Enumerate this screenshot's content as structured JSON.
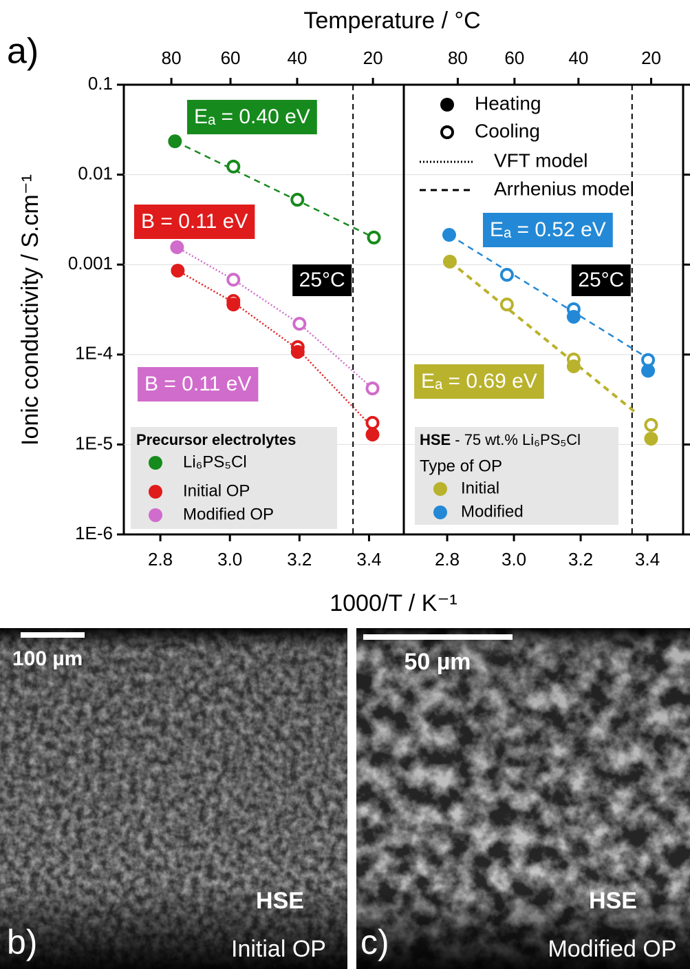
{
  "chart_data": [
    {
      "type": "scatter",
      "panel_label": "a)",
      "x2label": "Temperature / °C",
      "ylabel": "Ionic conductivity / S.cm⁻¹",
      "xlabel": "1000/T / K⁻¹",
      "xlim": [
        2.695,
        3.5
      ],
      "xticks": [
        2.8,
        {
          "value": 3.0,
          "label": "3.0"
        },
        3.2,
        3.4
      ],
      "x2ticks": [
        80,
        60,
        40,
        20
      ],
      "ylim": [
        1e-06,
        0.1
      ],
      "yscale": "log",
      "yticks": [
        0.1,
        0.01,
        0.001,
        {
          "value": 0.0001,
          "label": "1E-4"
        },
        {
          "value": 1e-05,
          "label": "1E-5"
        },
        {
          "value": 1e-06,
          "label": "1E-6"
        }
      ],
      "vline": {
        "x": 3.354,
        "label": "25°C"
      },
      "legend_title": "Precursor electrolytes",
      "series": [
        {
          "name": "Li₆PS₅Cl",
          "color": "#168a1c",
          "x": [
            2.842,
            3.01,
            3.194,
            3.414
          ],
          "heating": [
            0.0235,
            null,
            null,
            null
          ],
          "cooling": [
            null,
            0.0123,
            0.00526,
            0.002
          ],
          "fit": {
            "style": "dashed",
            "x": [
              2.842,
              3.414
            ],
            "values": [
              0.0235,
              0.002
            ]
          },
          "fit_label": "Eₐ = 0.40 eV"
        },
        {
          "name": "Initial OP",
          "color": "#e01b1b",
          "x": [
            2.85,
            3.01,
            3.195,
            3.41
          ],
          "heating": [
            0.000857,
            0.00036,
            0.000107,
            1.29e-05
          ],
          "cooling": [
            null,
            0.000394,
            0.000121,
            1.74e-05
          ],
          "fit": {
            "style": "dotted",
            "x": [
              2.85,
              3.01,
              3.195,
              3.41
            ],
            "values": [
              0.000857,
              0.00038,
              0.000115,
              1.55e-05
            ]
          },
          "fit_label": "B = 0.11 eV"
        },
        {
          "name": "Modified OP",
          "color": "#d06ccb",
          "x": [
            2.848,
            3.01,
            3.2,
            3.41
          ],
          "heating": [
            0.00156,
            null,
            null,
            null
          ],
          "cooling": [
            null,
            0.00068,
            0.00022,
            4.2e-05
          ],
          "fit": {
            "style": "dotted",
            "x": [
              2.848,
              3.01,
              3.2,
              3.41
            ],
            "values": [
              0.00156,
              0.00068,
              0.00022,
              4.2e-05
            ]
          },
          "fit_label": "B = 0.11 eV"
        }
      ]
    },
    {
      "type": "scatter",
      "xlim": [
        2.67,
        3.507
      ],
      "xticks": [
        2.8,
        {
          "value": 3.0,
          "label": "3.0"
        },
        3.2,
        3.4
      ],
      "x2ticks": [
        80,
        60,
        40,
        20
      ],
      "vline": {
        "x": 3.354,
        "label": "25°C"
      },
      "legend_title_bold": "HSE",
      "legend_title": "- 75 wt.% Li₆PS₅Cl",
      "legend_subtitle": "Type of OP",
      "style_legend": [
        {
          "name": "Heating",
          "marker": "filled"
        },
        {
          "name": "Cooling",
          "marker": "open"
        },
        {
          "name": "VFT model",
          "line": "dotted"
        },
        {
          "name": "Arrhenius model",
          "line": "dashed"
        }
      ],
      "series": [
        {
          "name": "Initial",
          "color": "#b9b22c",
          "x": [
            2.808,
            2.979,
            3.179,
            3.411
          ],
          "heating": [
            0.00108,
            null,
            7.4e-05,
            1.16e-05
          ],
          "cooling": [
            null,
            0.00036,
            8.8e-05,
            1.65e-05
          ],
          "fit": {
            "style": "dashed",
            "x": [
              2.808,
              3.367
            ],
            "values": [
              0.00108,
              2.23e-05
            ]
          },
          "fit_label": "Eₐ = 0.69 eV"
        },
        {
          "name": "Modified",
          "color": "#2389d6",
          "x": [
            2.806,
            2.979,
            3.179,
            3.402
          ],
          "heating": [
            0.00214,
            null,
            0.000263,
            6.6e-05
          ],
          "cooling": [
            null,
            0.00077,
            0.000319,
            8.7e-05
          ],
          "fit": {
            "style": "dashed",
            "x": [
              2.806,
              3.402
            ],
            "values": [
              0.00214,
              9.1e-05
            ]
          },
          "fit_label": "Eₐ = 0.52 eV"
        }
      ]
    }
  ],
  "images": [
    {
      "panel_label": "b)",
      "scale_bar": "100 µm",
      "sample": "HSE",
      "label": "Initial OP"
    },
    {
      "panel_label": "c)",
      "scale_bar": "50 µm",
      "sample": "HSE",
      "label": "Modified OP"
    }
  ]
}
